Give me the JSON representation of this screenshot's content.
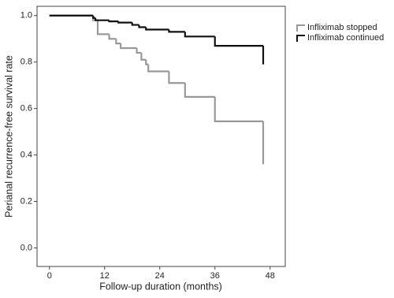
{
  "chart_data": {
    "type": "step",
    "xlabel": "Follow-up duration (months)",
    "ylabel": "Perianal recurrence-free survival rate",
    "xlim": [
      -2.7,
      51.3
    ],
    "xticks": [
      0,
      12,
      24,
      36,
      48
    ],
    "ylim": [
      -0.08,
      1.04
    ],
    "yticks": [
      {
        "value": 0,
        "label": "0.0"
      },
      {
        "value": 0.2,
        "label": "0.2"
      },
      {
        "value": 0.4,
        "label": "0.4"
      },
      {
        "value": 0.6,
        "label": "0.6"
      },
      {
        "value": 0.8,
        "label": "0.8"
      },
      {
        "value": 1,
        "label": "1.0"
      }
    ],
    "legend": "right",
    "series": [
      {
        "name": "Infliximab stopped",
        "color": "#999999",
        "x": [
          0,
          9.5,
          10.5,
          13,
          14.5,
          15.5,
          19,
          20,
          21,
          21.5,
          26,
          29.5,
          36,
          46.5
        ],
        "values": [
          1.0,
          0.98,
          0.92,
          0.9,
          0.88,
          0.86,
          0.84,
          0.81,
          0.79,
          0.76,
          0.71,
          0.65,
          0.545,
          0.36
        ]
      },
      {
        "name": "Infliximab continued",
        "color": "#111111",
        "x": [
          0,
          9.5,
          10,
          13,
          15,
          18,
          19.5,
          21,
          26,
          29.5,
          36,
          46.5
        ],
        "values": [
          1.0,
          0.99,
          0.98,
          0.975,
          0.97,
          0.96,
          0.95,
          0.94,
          0.93,
          0.91,
          0.87,
          0.79
        ]
      }
    ]
  }
}
